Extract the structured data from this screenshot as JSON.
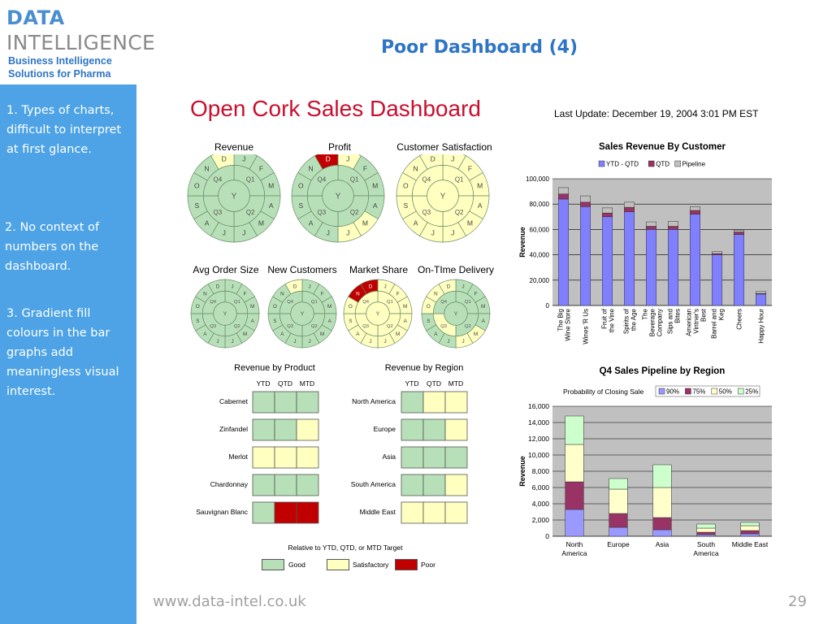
{
  "logo": {
    "line1": "DATA",
    "line2": "INTELLIGENCE",
    "sub1": "Business Intelligence",
    "sub2": "Solutions for Pharma"
  },
  "slide": {
    "title": "Poor Dashboard (4)",
    "url": "www.data-intel.co.uk",
    "page": "29"
  },
  "sidebar": {
    "points": [
      "1. Types of charts, difficult to interpret at first glance.",
      "2. No context of numbers on the dashboard.",
      "3. Gradient fill colours in the bar graphs add meaningless visual interest."
    ]
  },
  "dashboard": {
    "title": "Open Cork Sales Dashboard",
    "last_update": "Last Update:  December 19, 2004  3:01 PM EST",
    "colors": {
      "good": "#b8e0b8",
      "satisfactory": "#ffffc0",
      "poor": "#c00000"
    },
    "cycles": [
      {
        "label": "Revenue",
        "year": "Y",
        "quarters": [
          "Q1",
          "Q2",
          "Q3",
          "Q4"
        ],
        "months": [
          "J",
          "F",
          "M",
          "A",
          "M",
          "J",
          "J",
          "A",
          "S",
          "O",
          "N",
          "D"
        ],
        "quarter_status": [
          "good",
          "good",
          "good",
          "good"
        ],
        "month_status": [
          "good",
          "good",
          "good",
          "good",
          "good",
          "good",
          "good",
          "good",
          "good",
          "good",
          "good",
          "sat"
        ]
      },
      {
        "label": "Profit",
        "year": "Y",
        "quarters": [
          "Q1",
          "Q2",
          "Q3",
          "Q4"
        ],
        "months": [
          "J",
          "F",
          "M",
          "A",
          "M",
          "J",
          "J",
          "A",
          "S",
          "O",
          "N",
          "D"
        ],
        "quarter_status": [
          "good",
          "good",
          "good",
          "good"
        ],
        "month_status": [
          "sat",
          "good",
          "good",
          "good",
          "sat",
          "sat",
          "good",
          "good",
          "good",
          "good",
          "good",
          "poor"
        ]
      },
      {
        "label": "Customer Satisfaction",
        "year": "Y",
        "quarters": [
          "Q1",
          "Q2",
          "Q3",
          "Q4"
        ],
        "months": [
          "J",
          "F",
          "M",
          "A",
          "M",
          "J",
          "J",
          "A",
          "S",
          "O",
          "N",
          "D"
        ],
        "quarter_status": [
          "sat",
          "sat",
          "sat",
          "sat"
        ],
        "month_status": [
          "sat",
          "sat",
          "sat",
          "sat",
          "sat",
          "sat",
          "sat",
          "sat",
          "sat",
          "sat",
          "sat",
          "sat"
        ]
      },
      {
        "label": "Avg Order Size",
        "year": "Y",
        "quarters": [
          "Q1",
          "Q2",
          "Q3",
          "Q4"
        ],
        "months": [
          "J",
          "F",
          "M",
          "A",
          "M",
          "J",
          "J",
          "A",
          "S",
          "O",
          "N",
          "D"
        ],
        "quarter_status": [
          "good",
          "good",
          "good",
          "good"
        ],
        "month_status": [
          "good",
          "good",
          "good",
          "good",
          "good",
          "good",
          "good",
          "good",
          "good",
          "good",
          "good",
          "good"
        ]
      },
      {
        "label": "New Customers",
        "year": "Y",
        "quarters": [
          "Q1",
          "Q2",
          "Q3",
          "Q4"
        ],
        "months": [
          "J",
          "F",
          "M",
          "A",
          "M",
          "J",
          "J",
          "A",
          "S",
          "O",
          "N",
          "D"
        ],
        "quarter_status": [
          "good",
          "good",
          "good",
          "good"
        ],
        "month_status": [
          "good",
          "good",
          "good",
          "good",
          "good",
          "good",
          "good",
          "good",
          "good",
          "good",
          "good",
          "sat"
        ]
      },
      {
        "label": "Market Share",
        "year": "Y",
        "quarters": [
          "Q1",
          "Q2",
          "Q3",
          "Q4"
        ],
        "months": [
          "J",
          "F",
          "M",
          "A",
          "M",
          "J",
          "J",
          "A",
          "S",
          "O",
          "N",
          "D"
        ],
        "quarter_status": [
          "sat",
          "sat",
          "sat",
          "sat"
        ],
        "month_status": [
          "sat",
          "sat",
          "sat",
          "sat",
          "sat",
          "sat",
          "sat",
          "sat",
          "sat",
          "sat",
          "poor",
          "poor"
        ]
      },
      {
        "label": "On-TIme Delivery",
        "year": "Y",
        "quarters": [
          "Q1",
          "Q2",
          "Q3",
          "Q4"
        ],
        "months": [
          "J",
          "F",
          "M",
          "A",
          "M",
          "J",
          "J",
          "A",
          "S",
          "O",
          "N",
          "D"
        ],
        "quarter_status": [
          "good",
          "good",
          "sat",
          "good"
        ],
        "month_status": [
          "good",
          "good",
          "good",
          "good",
          "sat",
          "sat",
          "good",
          "good",
          "good",
          "sat",
          "sat",
          "sat"
        ]
      }
    ],
    "grids": [
      {
        "title": "Revenue by Product",
        "columns": [
          "YTD",
          "QTD",
          "MTD"
        ],
        "rows": [
          {
            "label": "Cabernet",
            "status": [
              "good",
              "good",
              "good"
            ]
          },
          {
            "label": "Zinfandel",
            "status": [
              "good",
              "good",
              "sat"
            ]
          },
          {
            "label": "Merlot",
            "status": [
              "sat",
              "sat",
              "sat"
            ]
          },
          {
            "label": "Chardonnay",
            "status": [
              "good",
              "good",
              "good"
            ]
          },
          {
            "label": "Sauvignan Blanc",
            "status": [
              "good",
              "poor",
              "poor"
            ]
          }
        ]
      },
      {
        "title": "Revenue by Region",
        "columns": [
          "YTD",
          "QTD",
          "MTD"
        ],
        "rows": [
          {
            "label": "North America",
            "status": [
              "good",
              "sat",
              "sat"
            ]
          },
          {
            "label": "Europe",
            "status": [
              "good",
              "good",
              "sat"
            ]
          },
          {
            "label": "Asia",
            "status": [
              "good",
              "good",
              "good"
            ]
          },
          {
            "label": "South America",
            "status": [
              "good",
              "good",
              "sat"
            ]
          },
          {
            "label": "Middle East",
            "status": [
              "sat",
              "sat",
              "sat"
            ]
          }
        ]
      }
    ],
    "legend": {
      "caption": "Relative to YTD, QTD, or MTD Target",
      "good": "Good",
      "satisfactory": "Satisfactory",
      "poor": "Poor"
    }
  },
  "chart_data": [
    {
      "type": "bar",
      "title": "Sales Revenue By Customer",
      "ylabel": "Revenue",
      "xlabel": "",
      "ylim": [
        0,
        100000
      ],
      "yticks": [
        "0",
        "20,000",
        "40,000",
        "60,000",
        "80,000",
        "100,000"
      ],
      "stacked": true,
      "legend_position": "top",
      "categories": [
        "The Big Wine Store",
        "Wines 'R Us",
        "Fruit of the Vine",
        "Spirits of the Age",
        "The Beverage Company",
        "Sips and Bites",
        "American Vintner's Best",
        "Barrel and Keg",
        "Cheers",
        "Happy Hour"
      ],
      "series": [
        {
          "name": "YTD - QTD",
          "color": "#8080ff",
          "values": [
            84000,
            78000,
            70000,
            74000,
            60000,
            60000,
            72000,
            40000,
            56000,
            9000
          ]
        },
        {
          "name": "QTD",
          "color": "#993366",
          "values": [
            4000,
            3500,
            3000,
            3500,
            2500,
            2500,
            3000,
            1000,
            2000,
            500
          ]
        },
        {
          "name": "Pipeline",
          "color": "#c0c0c0",
          "values": [
            5000,
            5000,
            4000,
            4000,
            3500,
            4000,
            3000,
            1500,
            1500,
            1500
          ]
        }
      ]
    },
    {
      "type": "bar",
      "title": "Q4 Sales Pipeline by Region",
      "subtitle": "Probability of Closing Sale",
      "ylabel": "Revenue",
      "xlabel": "",
      "ylim": [
        0,
        16000
      ],
      "yticks": [
        "0",
        "2,000",
        "4,000",
        "6,000",
        "8,000",
        "10,000",
        "12,000",
        "14,000",
        "16,000"
      ],
      "stacked": true,
      "legend_position": "top",
      "categories": [
        "North America",
        "Europe",
        "Asia",
        "South America",
        "Middle East"
      ],
      "series": [
        {
          "name": "90%",
          "color": "#9999ff",
          "values": [
            3300,
            1100,
            800,
            200,
            300
          ]
        },
        {
          "name": "75%",
          "color": "#993366",
          "values": [
            3400,
            1700,
            1500,
            300,
            400
          ]
        },
        {
          "name": "50%",
          "color": "#ffffcc",
          "values": [
            4600,
            3000,
            3700,
            500,
            600
          ]
        },
        {
          "name": "25%",
          "color": "#ccffcc",
          "values": [
            3500,
            1300,
            2800,
            500,
            400
          ]
        }
      ]
    }
  ]
}
